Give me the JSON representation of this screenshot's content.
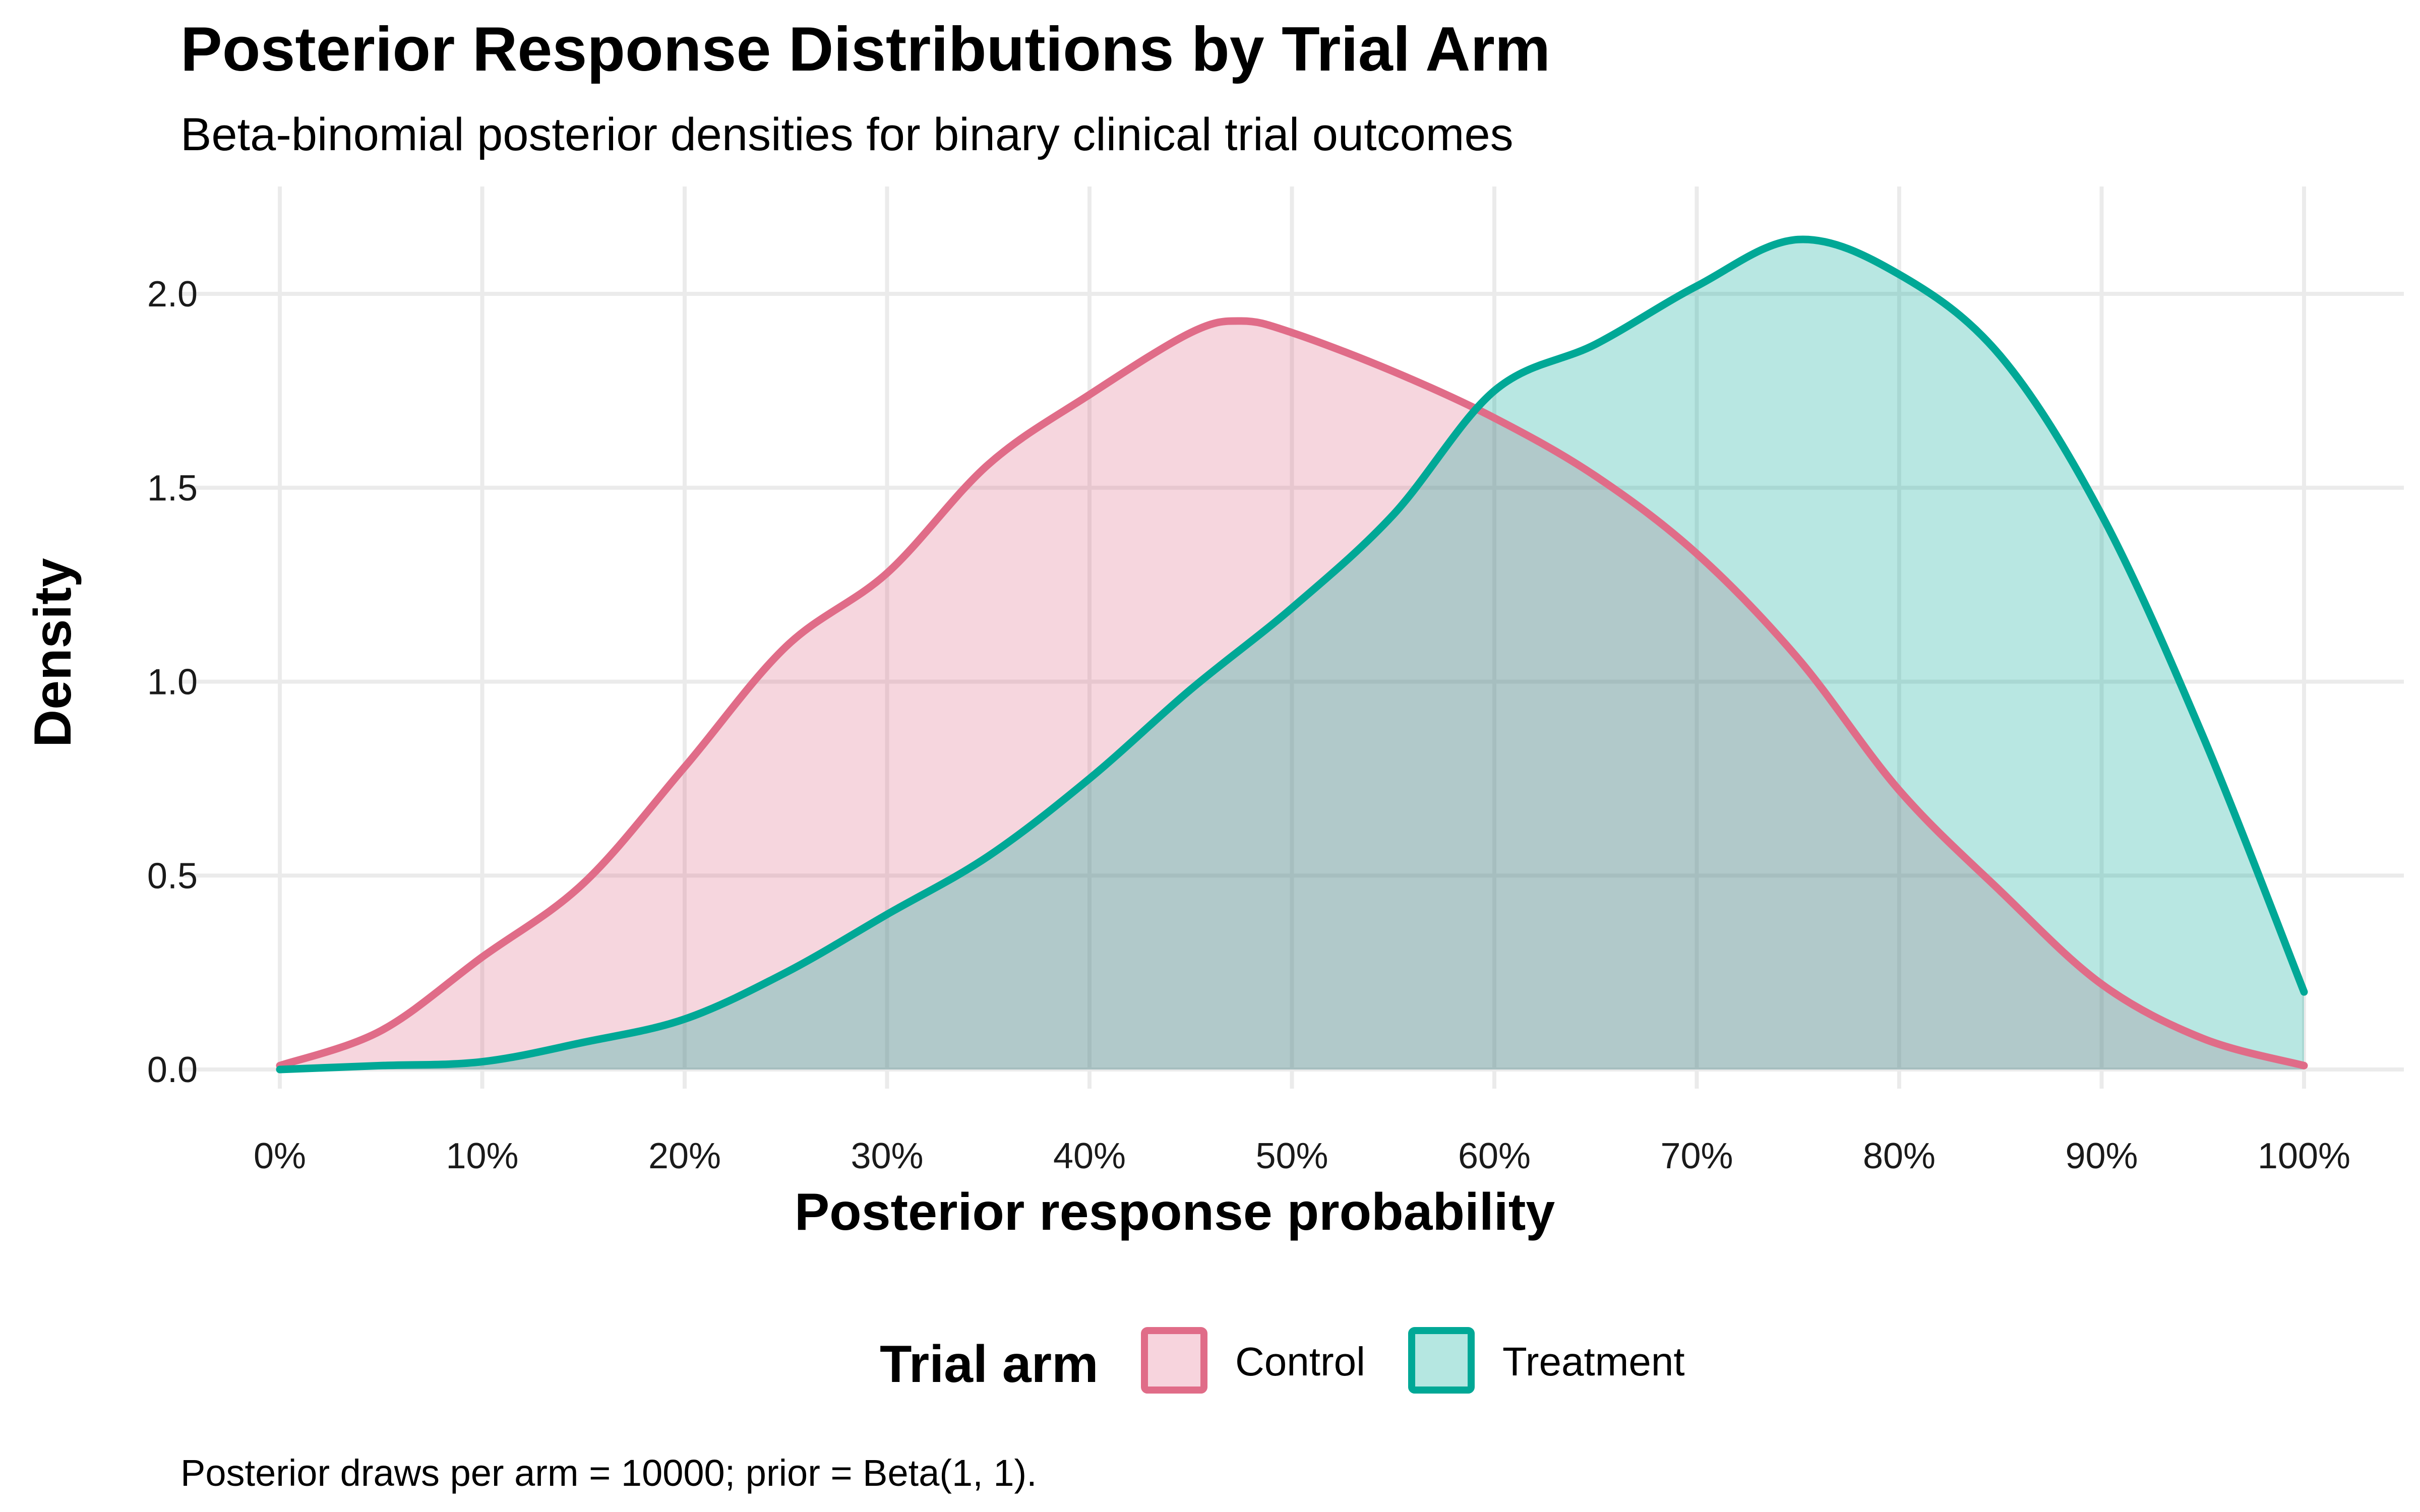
{
  "chart_data": {
    "type": "area",
    "title": "Posterior Response Distributions by Trial Arm",
    "subtitle": "Beta-binomial posterior densities for binary clinical trial outcomes",
    "xlabel": "Posterior response probability",
    "ylabel": "Density",
    "caption": "Posterior draws per arm = 10000; prior = Beta(1, 1).",
    "xlim": [
      0,
      1
    ],
    "ylim": [
      0,
      2.2
    ],
    "x_ticks": [
      0,
      0.1,
      0.2,
      0.3,
      0.4,
      0.5,
      0.6,
      0.7,
      0.8,
      0.9,
      1.0
    ],
    "x_tick_labels": [
      "0%",
      "10%",
      "20%",
      "30%",
      "40%",
      "50%",
      "60%",
      "70%",
      "80%",
      "90%",
      "100%"
    ],
    "y_ticks": [
      0,
      0.5,
      1.0,
      1.5,
      2.0
    ],
    "y_tick_labels": [
      "0.0",
      "0.5",
      "1.0",
      "1.5",
      "2.0"
    ],
    "grid": true,
    "legend": {
      "title": "Trial arm",
      "position": "bottom"
    },
    "series": [
      {
        "name": "Control",
        "color": "#E06C88",
        "fill": "#F7D4DD",
        "x": [
          0,
          0.05,
          0.1,
          0.15,
          0.2,
          0.25,
          0.3,
          0.35,
          0.4,
          0.45,
          0.475,
          0.5,
          0.55,
          0.6,
          0.65,
          0.7,
          0.75,
          0.8,
          0.85,
          0.9,
          0.95,
          1.0
        ],
        "y": [
          0.01,
          0.1,
          0.29,
          0.48,
          0.78,
          1.09,
          1.28,
          1.56,
          1.74,
          1.9,
          1.93,
          1.9,
          1.8,
          1.68,
          1.53,
          1.33,
          1.06,
          0.72,
          0.46,
          0.22,
          0.08,
          0.01
        ]
      },
      {
        "name": "Treatment",
        "color": "#00A896",
        "fill": "#B5E7E1",
        "x": [
          0,
          0.05,
          0.1,
          0.15,
          0.2,
          0.25,
          0.3,
          0.35,
          0.4,
          0.45,
          0.5,
          0.55,
          0.6,
          0.65,
          0.7,
          0.75,
          0.8,
          0.85,
          0.9,
          0.95,
          1.0
        ],
        "y": [
          0,
          0.01,
          0.02,
          0.07,
          0.13,
          0.25,
          0.4,
          0.55,
          0.75,
          0.98,
          1.19,
          1.43,
          1.75,
          1.87,
          2.02,
          2.14,
          2.05,
          1.84,
          1.43,
          0.86,
          0.2
        ]
      }
    ]
  }
}
